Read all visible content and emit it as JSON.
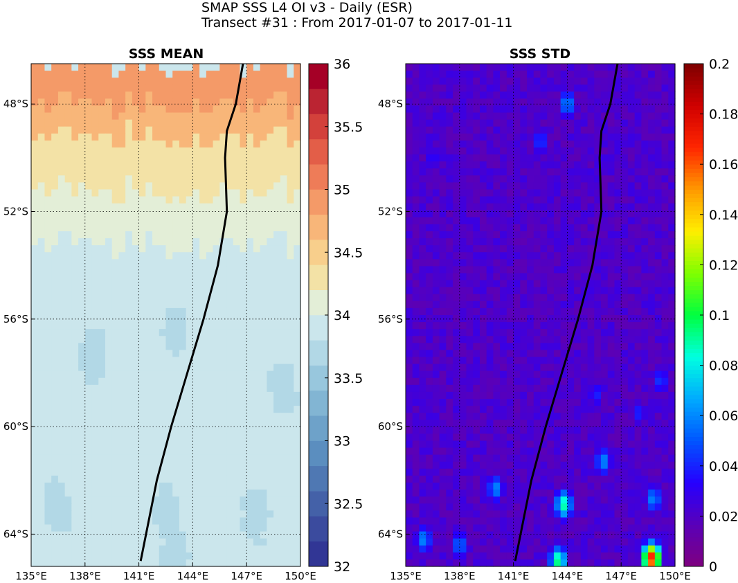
{
  "figure": {
    "title_line1": "SMAP SSS L4 OI v3 - Daily (ESR)",
    "title_line2": "Transect #31 : From 2017-01-07 to 2017-01-11"
  },
  "chart_data": [
    {
      "type": "heatmap",
      "title": "SSS MEAN",
      "xlabel": "",
      "ylabel": "",
      "xlim": [
        135,
        150
      ],
      "ylim": [
        -65.2,
        -46.5
      ],
      "x_ticks": [
        135,
        138,
        141,
        144,
        147,
        150
      ],
      "x_tick_labels": [
        "135°E",
        "138°E",
        "141°E",
        "144°E",
        "147°E",
        "150°E"
      ],
      "y_ticks": [
        -48,
        -52,
        -56,
        -60,
        -64
      ],
      "y_tick_labels": [
        "48°S",
        "52°S",
        "56°S",
        "60°S",
        "64°S"
      ],
      "grid": true,
      "colorbar": {
        "range": [
          32,
          36
        ],
        "ticks": [
          32,
          32.5,
          33,
          33.5,
          34,
          34.5,
          35,
          35.5,
          36
        ],
        "tick_labels": [
          "32",
          "32.5",
          "33",
          "33.5",
          "34",
          "34.5",
          "35",
          "35.5",
          "36"
        ],
        "levels": 20,
        "colors": [
          "#313695",
          "#3b4b9e",
          "#4461a8",
          "#4f78b3",
          "#5b8ebf",
          "#6ea2c9",
          "#82b5d3",
          "#98c7dd",
          "#b2d8e6",
          "#cbe6ec",
          "#e3eed7",
          "#f3e2a6",
          "#f8cf8c",
          "#f8b679",
          "#f49a68",
          "#ee7c58",
          "#e35e48",
          "#d3413b",
          "#bb2432",
          "#a50026"
        ]
      },
      "field_bands": [
        {
          "lat_from": -46.5,
          "lat_to": -48.0,
          "value": 34.85
        },
        {
          "lat_from": -48.0,
          "lat_to": -49.2,
          "value": 34.65
        },
        {
          "lat_from": -49.2,
          "lat_to": -51.2,
          "value": 34.35
        },
        {
          "lat_from": -51.2,
          "lat_to": -53.2,
          "value": 34.05
        },
        {
          "lat_from": -53.2,
          "lat_to": -65.2,
          "value": 33.9
        }
      ],
      "field_patches": [
        {
          "lon": 136.5,
          "lat": -63.0,
          "value": 33.7
        },
        {
          "lon": 138.5,
          "lat": -57.3,
          "value": 33.7
        },
        {
          "lon": 143.0,
          "lat": -56.5,
          "value": 33.7
        },
        {
          "lon": 149.0,
          "lat": -58.5,
          "value": 33.7
        },
        {
          "lon": 142.5,
          "lat": -63.2,
          "value": 33.7
        },
        {
          "lon": 147.5,
          "lat": -63.3,
          "value": 33.6
        },
        {
          "lon": 143.0,
          "lat": -64.8,
          "value": 33.6
        }
      ],
      "transect": {
        "lon": [
          146.8,
          146.4,
          145.9,
          145.8,
          145.9,
          145.4,
          144.6,
          143.7,
          142.8,
          142.0,
          141.1
        ],
        "lat": [
          -46.5,
          -48.0,
          -49.0,
          -50.0,
          -52.0,
          -54.0,
          -56.0,
          -58.0,
          -60.0,
          -62.0,
          -65.0
        ]
      }
    },
    {
      "type": "heatmap",
      "title": "SSS STD",
      "xlabel": "",
      "ylabel": "",
      "xlim": [
        135,
        150
      ],
      "ylim": [
        -65.2,
        -46.5
      ],
      "x_ticks": [
        135,
        138,
        141,
        144,
        147,
        150
      ],
      "x_tick_labels": [
        "135°E",
        "138°E",
        "141°E",
        "144°E",
        "147°E",
        "150°E"
      ],
      "y_ticks": [
        -48,
        -52,
        -56,
        -60,
        -64
      ],
      "y_tick_labels": [
        "48°S",
        "52°S",
        "56°S",
        "60°S",
        "64°S"
      ],
      "grid": true,
      "colorbar": {
        "range": [
          0,
          0.2
        ],
        "ticks": [
          0,
          0.02,
          0.04,
          0.06,
          0.08,
          0.1,
          0.12,
          0.14,
          0.16,
          0.18,
          0.2
        ],
        "tick_labels": [
          "0",
          "0.02",
          "0.04",
          "0.06",
          "0.08",
          "0.1",
          "0.12",
          "0.14",
          "0.16",
          "0.18",
          "0.2"
        ],
        "colors": [
          "#7f007f",
          "#5a00b8",
          "#2600ff",
          "#0055ff",
          "#00aaff",
          "#00ffe0",
          "#00ff40",
          "#7fff00",
          "#ffee00",
          "#ff9900",
          "#ff2600",
          "#d00000",
          "#7f0000"
        ]
      },
      "field_background": 0.015,
      "field_blobs": [
        {
          "lon": 144.0,
          "lat": -48.0,
          "value": 0.06
        },
        {
          "lon": 142.5,
          "lat": -49.4,
          "value": 0.045
        },
        {
          "lon": 140.0,
          "lat": -62.3,
          "value": 0.06
        },
        {
          "lon": 143.8,
          "lat": -62.9,
          "value": 0.09
        },
        {
          "lon": 146.0,
          "lat": -61.3,
          "value": 0.06
        },
        {
          "lon": 148.8,
          "lat": -62.7,
          "value": 0.06
        },
        {
          "lon": 136.0,
          "lat": -64.2,
          "value": 0.06
        },
        {
          "lon": 138.0,
          "lat": -64.4,
          "value": 0.055
        },
        {
          "lon": 149.2,
          "lat": -58.3,
          "value": 0.045
        },
        {
          "lon": 148.0,
          "lat": -59.5,
          "value": 0.04
        },
        {
          "lon": 136.5,
          "lat": -50.0,
          "value": 0.035
        },
        {
          "lon": 145.6,
          "lat": -58.8,
          "value": 0.04
        },
        {
          "lon": 143.5,
          "lat": -65.0,
          "value": 0.095
        },
        {
          "lon": 148.7,
          "lat": -64.9,
          "value": 0.17
        }
      ],
      "transect": {
        "lon": [
          146.8,
          146.4,
          145.9,
          145.8,
          145.9,
          145.4,
          144.6,
          143.7,
          142.8,
          142.0,
          141.1
        ],
        "lat": [
          -46.5,
          -48.0,
          -49.0,
          -50.0,
          -52.0,
          -54.0,
          -56.0,
          -58.0,
          -60.0,
          -62.0,
          -65.0
        ]
      }
    }
  ]
}
